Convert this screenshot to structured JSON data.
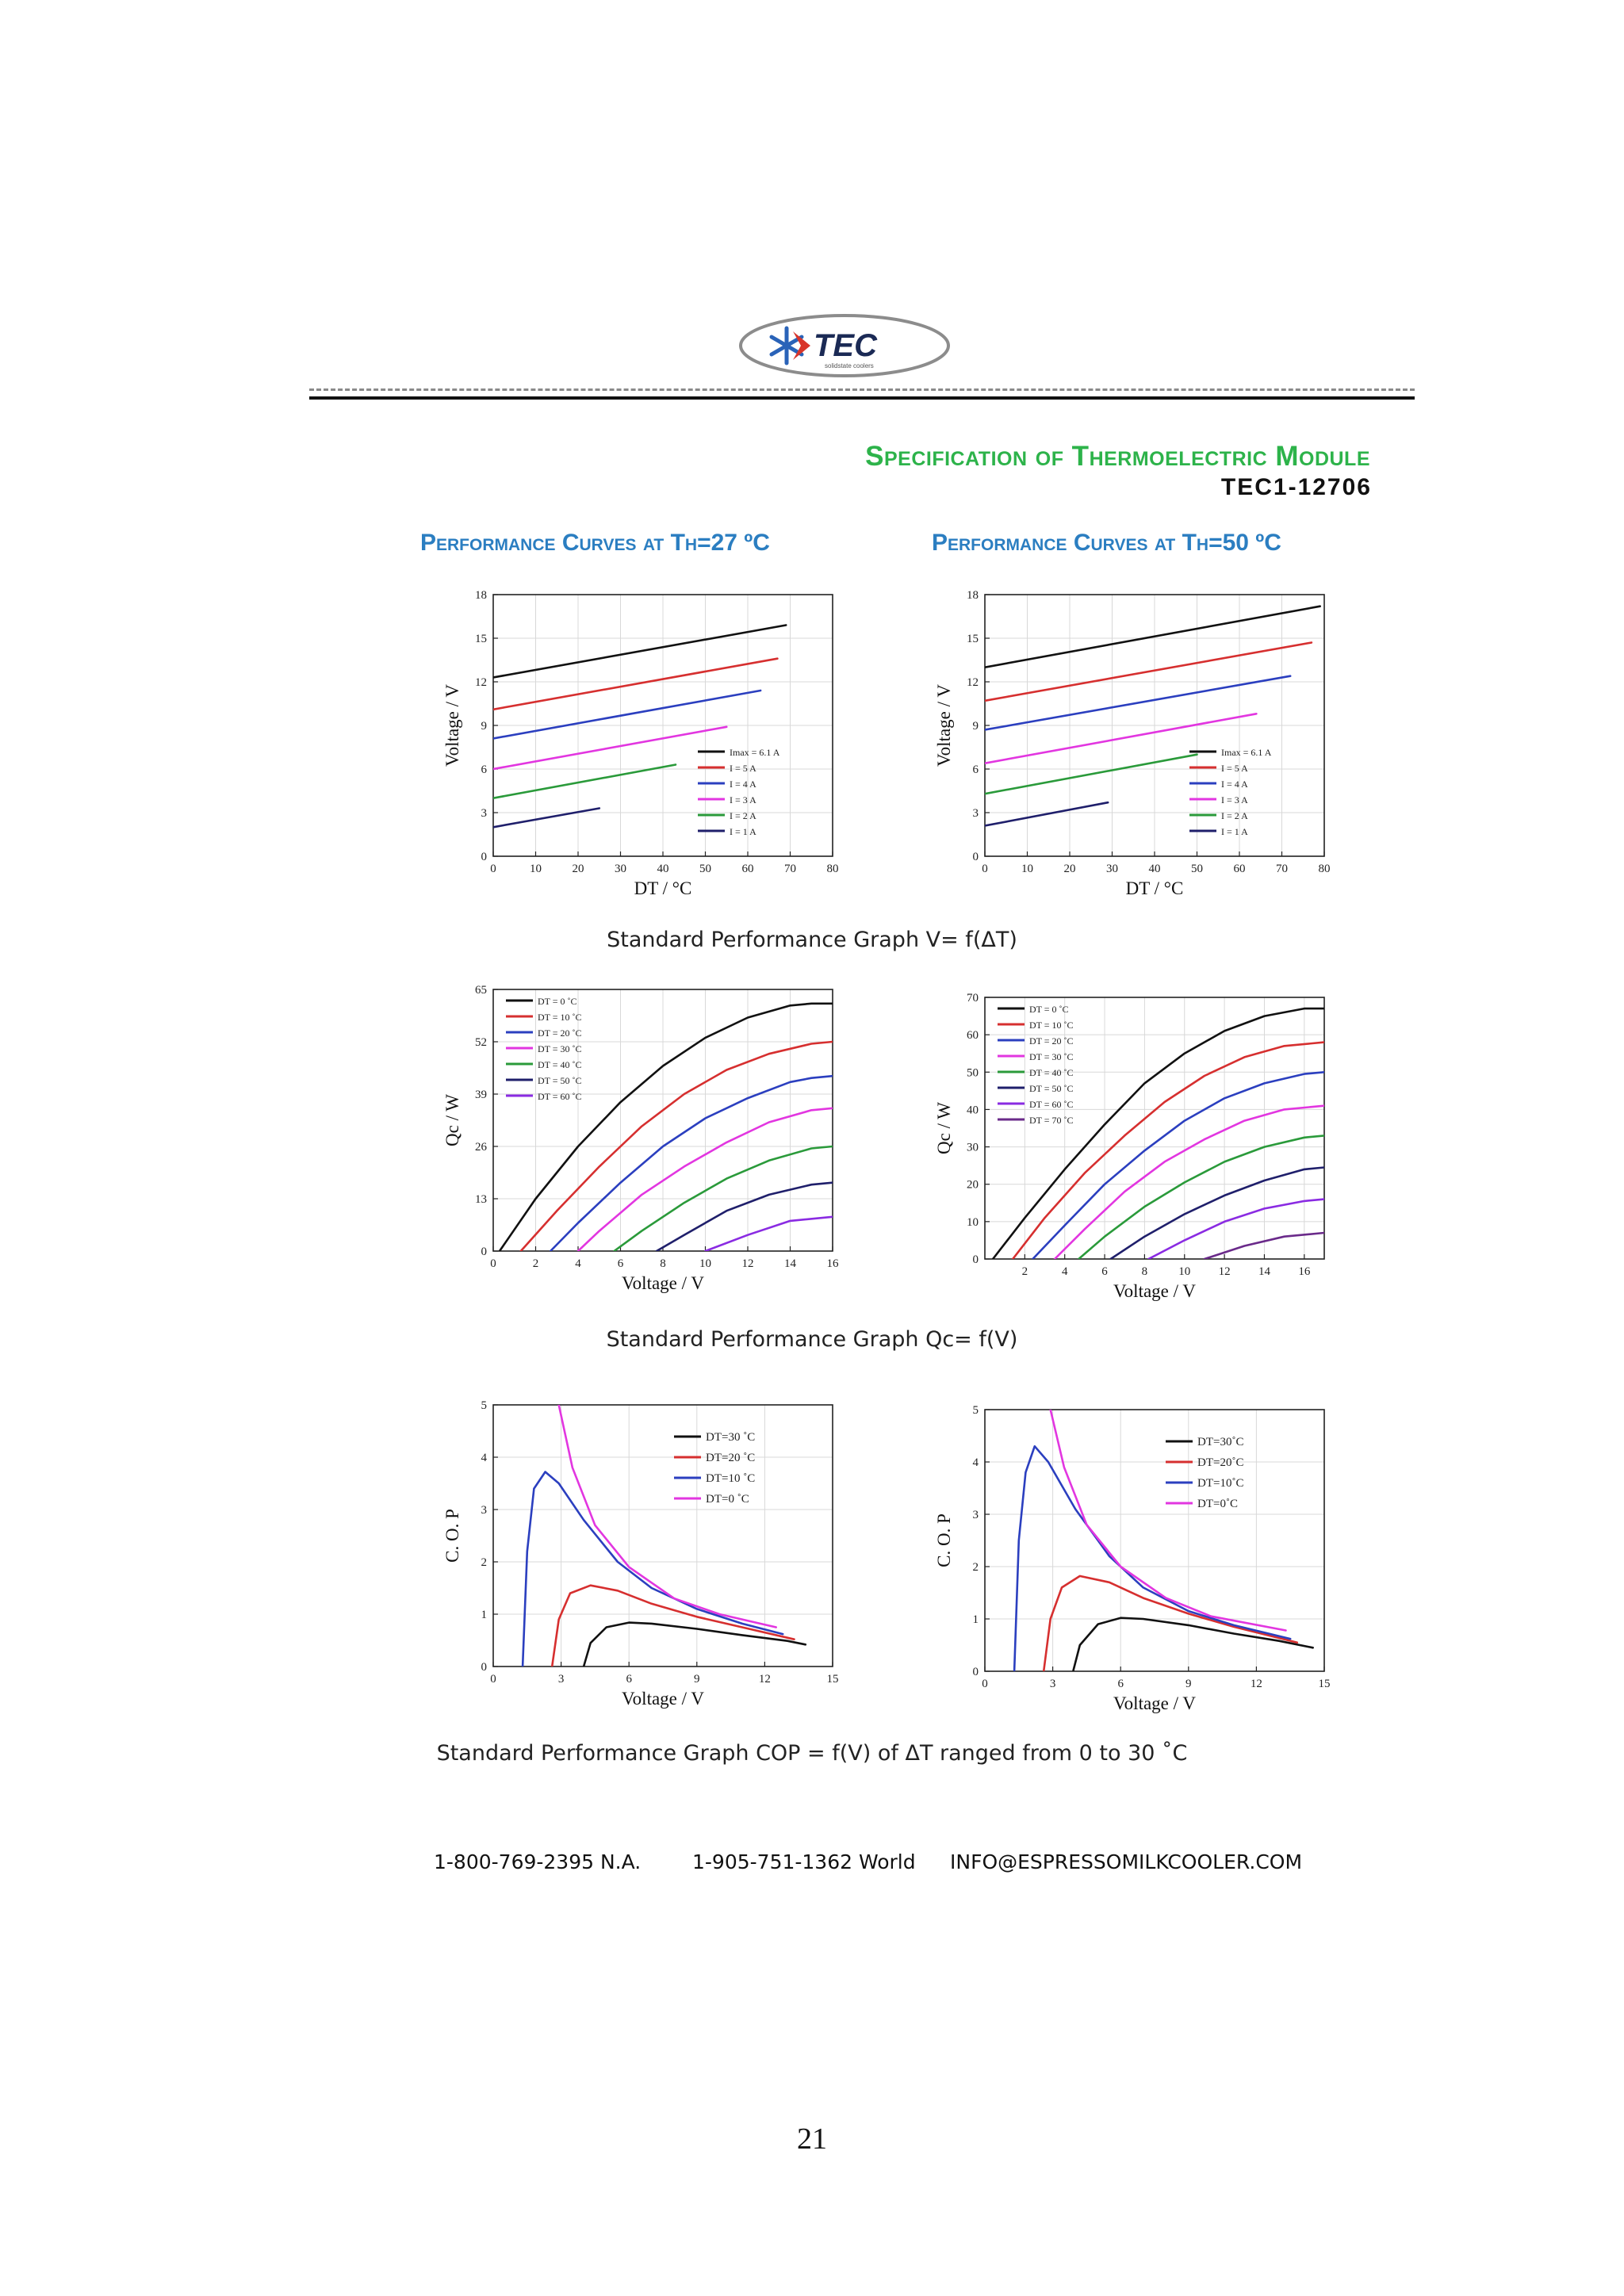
{
  "logo": {
    "brand": "TEC",
    "tagline": "solidstate coolers"
  },
  "header": {
    "title": "Specification of Thermoelectric Module",
    "model": "TEC1-12706",
    "left_heading": "Performance Curves at Th=27 ºC",
    "right_heading": "Performance Curves at Th=50 ºC"
  },
  "captions": {
    "v_dt": "Standard Performance Graph V= f(ΔT)",
    "qc_v": "Standard Performance Graph Qc= f(V)",
    "cop_v": "Standard Performance Graph COP = f(V) of ΔT ranged from 0 to 30 ˚C"
  },
  "footer": {
    "phone_na": "1-800-769-2395 N.A.",
    "phone_world": "1-905-751-1362 World",
    "email": "INFO@ESPRESSOMILKCOOLER.COM"
  },
  "page_number": "21",
  "chart_data": [
    {
      "id": "v27",
      "type": "line",
      "xlabel": "DT / °C",
      "ylabel": "Voltage / V",
      "xlim": [
        0,
        80
      ],
      "ylim": [
        0,
        18
      ],
      "xticks": [
        0,
        10,
        20,
        30,
        40,
        50,
        60,
        70,
        80
      ],
      "yticks": [
        0,
        3,
        6,
        9,
        12,
        15,
        18
      ],
      "legend": "lower-right",
      "series": [
        {
          "name": "Imax = 6.1 A",
          "color": "#111111",
          "x": [
            0,
            69
          ],
          "y": [
            12.3,
            15.9
          ]
        },
        {
          "name": "I = 5 A",
          "color": "#d62f2f",
          "x": [
            0,
            67
          ],
          "y": [
            10.1,
            13.6
          ]
        },
        {
          "name": "I = 4 A",
          "color": "#2b3fbf",
          "x": [
            0,
            63
          ],
          "y": [
            8.1,
            11.4
          ]
        },
        {
          "name": "I = 3 A",
          "color": "#e236e0",
          "x": [
            0,
            55
          ],
          "y": [
            6.0,
            8.9
          ]
        },
        {
          "name": "I = 2 A",
          "color": "#2a9a3a",
          "x": [
            0,
            43
          ],
          "y": [
            4.0,
            6.3
          ]
        },
        {
          "name": "I = 1 A",
          "color": "#1f1f6b",
          "x": [
            0,
            25
          ],
          "y": [
            2.0,
            3.3
          ]
        }
      ]
    },
    {
      "id": "v50",
      "type": "line",
      "xlabel": "DT / °C",
      "ylabel": "Voltage / V",
      "xlim": [
        0,
        80
      ],
      "ylim": [
        0,
        18
      ],
      "xticks": [
        0,
        10,
        20,
        30,
        40,
        50,
        60,
        70,
        80
      ],
      "yticks": [
        0,
        3,
        6,
        9,
        12,
        15,
        18
      ],
      "legend": "lower-right",
      "series": [
        {
          "name": "Imax = 6.1 A",
          "color": "#111111",
          "x": [
            0,
            79
          ],
          "y": [
            13.0,
            17.2
          ]
        },
        {
          "name": "I = 5 A",
          "color": "#d62f2f",
          "x": [
            0,
            77
          ],
          "y": [
            10.7,
            14.7
          ]
        },
        {
          "name": "I = 4 A",
          "color": "#2b3fbf",
          "x": [
            0,
            72
          ],
          "y": [
            8.7,
            12.4
          ]
        },
        {
          "name": "I = 3 A",
          "color": "#e236e0",
          "x": [
            0,
            64
          ],
          "y": [
            6.4,
            9.8
          ]
        },
        {
          "name": "I = 2 A",
          "color": "#2a9a3a",
          "x": [
            0,
            50
          ],
          "y": [
            4.3,
            7.0
          ]
        },
        {
          "name": "I = 1 A",
          "color": "#1f1f6b",
          "x": [
            0,
            29
          ],
          "y": [
            2.1,
            3.7
          ]
        }
      ]
    },
    {
      "id": "qc27",
      "type": "line",
      "xlabel": "Voltage / V",
      "ylabel": "Qc / W",
      "xlim": [
        0,
        16
      ],
      "ylim": [
        0,
        65
      ],
      "xticks": [
        0,
        2,
        4,
        6,
        8,
        10,
        12,
        14,
        16
      ],
      "yticks": [
        0,
        13,
        26,
        39,
        52,
        65
      ],
      "legend": "top-left",
      "series": [
        {
          "name": "DT = 0 ˚C",
          "color": "#111111",
          "x": [
            0.3,
            2,
            4,
            6,
            8,
            10,
            12,
            14,
            15,
            16
          ],
          "y": [
            0,
            13,
            26,
            37,
            46,
            53,
            58,
            61,
            61.5,
            61.5
          ]
        },
        {
          "name": "DT = 10 ˚C",
          "color": "#d62f2f",
          "x": [
            1.3,
            3,
            5,
            7,
            9,
            11,
            13,
            15,
            16
          ],
          "y": [
            0,
            10,
            21,
            31,
            39,
            45,
            49,
            51.5,
            52
          ]
        },
        {
          "name": "DT = 20 ˚C",
          "color": "#2b3fbf",
          "x": [
            2.7,
            4,
            6,
            8,
            10,
            12,
            14,
            15,
            16
          ],
          "y": [
            0,
            7,
            17,
            26,
            33,
            38,
            42,
            43,
            43.5
          ]
        },
        {
          "name": "DT = 30 ˚C",
          "color": "#e236e0",
          "x": [
            4,
            5,
            7,
            9,
            11,
            13,
            15,
            16
          ],
          "y": [
            0,
            5,
            14,
            21,
            27,
            32,
            35,
            35.5
          ]
        },
        {
          "name": "DT = 40 ˚C",
          "color": "#2a9a3a",
          "x": [
            5.7,
            7,
            9,
            11,
            13,
            15,
            16
          ],
          "y": [
            0,
            5,
            12,
            18,
            22.5,
            25.5,
            26
          ]
        },
        {
          "name": "DT = 50 ˚C",
          "color": "#1f1f6b",
          "x": [
            7.7,
            9,
            11,
            13,
            15,
            16
          ],
          "y": [
            0,
            4,
            10,
            14,
            16.5,
            17
          ]
        },
        {
          "name": "DT = 60 ˚C",
          "color": "#8a2be2",
          "x": [
            10,
            12,
            14,
            16
          ],
          "y": [
            0,
            4,
            7.5,
            8.5
          ]
        }
      ]
    },
    {
      "id": "qc50",
      "type": "line",
      "xlabel": "Voltage / V",
      "ylabel": "Qc / W",
      "xlim": [
        0,
        17
      ],
      "ylim": [
        0,
        70
      ],
      "xticks": [
        2,
        4,
        6,
        8,
        10,
        12,
        14,
        16
      ],
      "yticks": [
        0,
        10,
        20,
        30,
        40,
        50,
        60,
        70
      ],
      "legend": "top-left",
      "series": [
        {
          "name": "DT = 0 ˚C",
          "color": "#111111",
          "x": [
            0.4,
            2,
            4,
            6,
            8,
            10,
            12,
            14,
            16,
            17
          ],
          "y": [
            0,
            11,
            24,
            36,
            47,
            55,
            61,
            65,
            67,
            67
          ]
        },
        {
          "name": "DT = 10 ˚C",
          "color": "#d62f2f",
          "x": [
            1.4,
            3,
            5,
            7,
            9,
            11,
            13,
            15,
            17
          ],
          "y": [
            0,
            11,
            23,
            33,
            42,
            49,
            54,
            57,
            58
          ]
        },
        {
          "name": "DT = 20 ˚C",
          "color": "#2b3fbf",
          "x": [
            2.4,
            4,
            6,
            8,
            10,
            12,
            14,
            16,
            17
          ],
          "y": [
            0,
            9,
            20,
            29,
            37,
            43,
            47,
            49.5,
            50
          ]
        },
        {
          "name": "DT = 30 ˚C",
          "color": "#e236e0",
          "x": [
            3.5,
            5,
            7,
            9,
            11,
            13,
            15,
            17
          ],
          "y": [
            0,
            8,
            18,
            26,
            32,
            37,
            40,
            41
          ]
        },
        {
          "name": "DT = 40 ˚C",
          "color": "#2a9a3a",
          "x": [
            4.7,
            6,
            8,
            10,
            12,
            14,
            16,
            17
          ],
          "y": [
            0,
            6,
            14,
            20.5,
            26,
            30,
            32.5,
            33
          ]
        },
        {
          "name": "DT = 50 ˚C",
          "color": "#1f1f6b",
          "x": [
            6.3,
            8,
            10,
            12,
            14,
            16,
            17
          ],
          "y": [
            0,
            6,
            12,
            17,
            21,
            24,
            24.5
          ]
        },
        {
          "name": "DT = 60 ˚C",
          "color": "#8a2be2",
          "x": [
            8.2,
            10,
            12,
            14,
            16,
            17
          ],
          "y": [
            0,
            5,
            10,
            13.5,
            15.5,
            16
          ]
        },
        {
          "name": "DT = 70 ˚C",
          "color": "#6a2a8a",
          "x": [
            11,
            13,
            15,
            17
          ],
          "y": [
            0,
            3.5,
            6,
            7
          ]
        }
      ]
    },
    {
      "id": "cop27",
      "type": "line",
      "xlabel": "Voltage / V",
      "ylabel": "C. O. P",
      "xlim": [
        0,
        15
      ],
      "ylim": [
        0,
        5
      ],
      "xticks": [
        0,
        3,
        6,
        9,
        12,
        15
      ],
      "yticks": [
        0,
        1,
        2,
        3,
        4,
        5
      ],
      "legend": "top-right",
      "series": [
        {
          "name": "DT=30 ˚C",
          "color": "#111111",
          "x": [
            4.0,
            4.3,
            5,
            6,
            7,
            9,
            11,
            13,
            13.8
          ],
          "y": [
            0,
            0.45,
            0.75,
            0.84,
            0.82,
            0.72,
            0.6,
            0.49,
            0.42
          ]
        },
        {
          "name": "DT=20 ˚C",
          "color": "#d62f2f",
          "x": [
            2.6,
            2.9,
            3.4,
            4.3,
            5.5,
            7,
            9,
            11,
            13.3
          ],
          "y": [
            0,
            0.9,
            1.4,
            1.55,
            1.45,
            1.2,
            0.95,
            0.75,
            0.52
          ]
        },
        {
          "name": "DT=10 ˚C",
          "color": "#2b3fbf",
          "x": [
            1.3,
            1.5,
            1.8,
            2.3,
            2.9,
            4,
            5.5,
            7,
            9,
            11,
            12.8
          ],
          "y": [
            0,
            2.2,
            3.4,
            3.72,
            3.5,
            2.8,
            2.0,
            1.5,
            1.1,
            0.82,
            0.62
          ]
        },
        {
          "name": "DT=0 ˚C",
          "color": "#e236e0",
          "x": [
            2.9,
            3.5,
            4.5,
            6,
            8,
            10,
            12.5
          ],
          "y": [
            5.0,
            3.8,
            2.7,
            1.9,
            1.3,
            1.0,
            0.75
          ]
        }
      ]
    },
    {
      "id": "cop50",
      "type": "line",
      "xlabel": "Voltage / V",
      "ylabel": "C. O. P",
      "xlim": [
        0,
        15
      ],
      "ylim": [
        0,
        5
      ],
      "xticks": [
        0,
        3,
        6,
        9,
        12,
        15
      ],
      "yticks": [
        0,
        1,
        2,
        3,
        4,
        5
      ],
      "legend": "top-right",
      "series": [
        {
          "name": "DT=30˚C",
          "color": "#111111",
          "x": [
            3.9,
            4.2,
            5,
            6,
            7,
            9,
            11,
            13,
            14.5
          ],
          "y": [
            0,
            0.5,
            0.9,
            1.02,
            1.0,
            0.88,
            0.72,
            0.58,
            0.45
          ]
        },
        {
          "name": "DT=20˚C",
          "color": "#d62f2f",
          "x": [
            2.6,
            2.9,
            3.4,
            4.2,
            5.5,
            7,
            9,
            11,
            13.8
          ],
          "y": [
            0,
            1.0,
            1.6,
            1.82,
            1.7,
            1.4,
            1.1,
            0.85,
            0.55
          ]
        },
        {
          "name": "DT=10˚C",
          "color": "#2b3fbf",
          "x": [
            1.3,
            1.5,
            1.8,
            2.2,
            2.8,
            4,
            5.5,
            7,
            9,
            11,
            13.5
          ],
          "y": [
            0,
            2.5,
            3.8,
            4.3,
            4.0,
            3.1,
            2.2,
            1.6,
            1.15,
            0.88,
            0.62
          ]
        },
        {
          "name": "DT=0˚C",
          "color": "#e236e0",
          "x": [
            2.9,
            3.5,
            4.5,
            6,
            8,
            10,
            13.3
          ],
          "y": [
            5.0,
            3.9,
            2.8,
            2.0,
            1.4,
            1.05,
            0.78
          ]
        }
      ]
    }
  ]
}
